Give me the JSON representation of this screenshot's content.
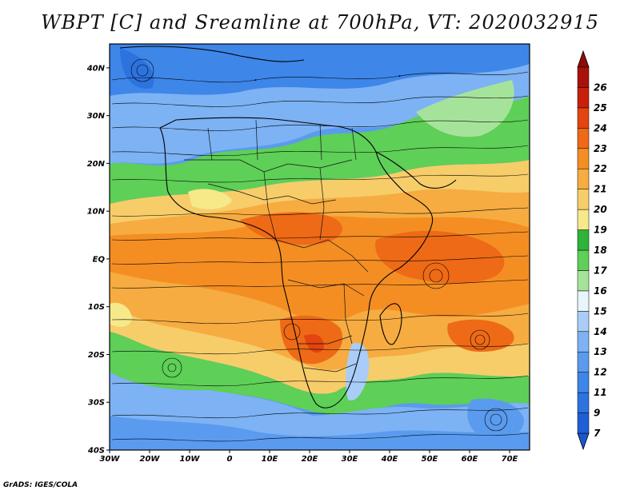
{
  "title": "WBPT [C] and Sreamline at 700hPa, VT: 2020032915",
  "footer": "GrADS: IGES/COLA",
  "map": {
    "lon_range": [
      -30,
      75
    ],
    "lat_range": [
      -40,
      45
    ],
    "lat_ticks": [
      {
        "value": 40,
        "label": "40N"
      },
      {
        "value": 30,
        "label": "30N"
      },
      {
        "value": 20,
        "label": "20N"
      },
      {
        "value": 10,
        "label": "10N"
      },
      {
        "value": 0,
        "label": "EQ"
      },
      {
        "value": -10,
        "label": "10S"
      },
      {
        "value": -20,
        "label": "20S"
      },
      {
        "value": -30,
        "label": "30S"
      },
      {
        "value": -40,
        "label": "40S"
      }
    ],
    "lon_ticks": [
      {
        "value": -30,
        "label": "30W"
      },
      {
        "value": -20,
        "label": "20W"
      },
      {
        "value": -10,
        "label": "10W"
      },
      {
        "value": 0,
        "label": "0"
      },
      {
        "value": 10,
        "label": "10E"
      },
      {
        "value": 20,
        "label": "20E"
      },
      {
        "value": 30,
        "label": "30E"
      },
      {
        "value": 40,
        "label": "40E"
      },
      {
        "value": 50,
        "label": "50E"
      },
      {
        "value": 60,
        "label": "60E"
      },
      {
        "value": 70,
        "label": "70E"
      }
    ]
  },
  "colorbar": {
    "levels": [
      {
        "label": "7",
        "color": "#1f5fd6"
      },
      {
        "label": "9",
        "color": "#2d73e0"
      },
      {
        "label": "11",
        "color": "#3e86e8"
      },
      {
        "label": "12",
        "color": "#5a9bef"
      },
      {
        "label": "13",
        "color": "#7db2f4"
      },
      {
        "label": "14",
        "color": "#a9cdf8"
      },
      {
        "label": "15",
        "color": "#e8f6fc"
      },
      {
        "label": "16",
        "color": "#a6e39a"
      },
      {
        "label": "17",
        "color": "#5ecf57"
      },
      {
        "label": "18",
        "color": "#2fb33a"
      },
      {
        "label": "19",
        "color": "#f6e98a"
      },
      {
        "label": "20",
        "color": "#f7cd6a"
      },
      {
        "label": "21",
        "color": "#f6ac41"
      },
      {
        "label": "22",
        "color": "#f48e23"
      },
      {
        "label": "23",
        "color": "#ee6a16"
      },
      {
        "label": "24",
        "color": "#e4440f"
      },
      {
        "label": "25",
        "color": "#c8200b"
      },
      {
        "label": "26",
        "color": "#a8120a"
      }
    ],
    "under_color": "#1a57cf",
    "over_color": "#8f0d08"
  }
}
